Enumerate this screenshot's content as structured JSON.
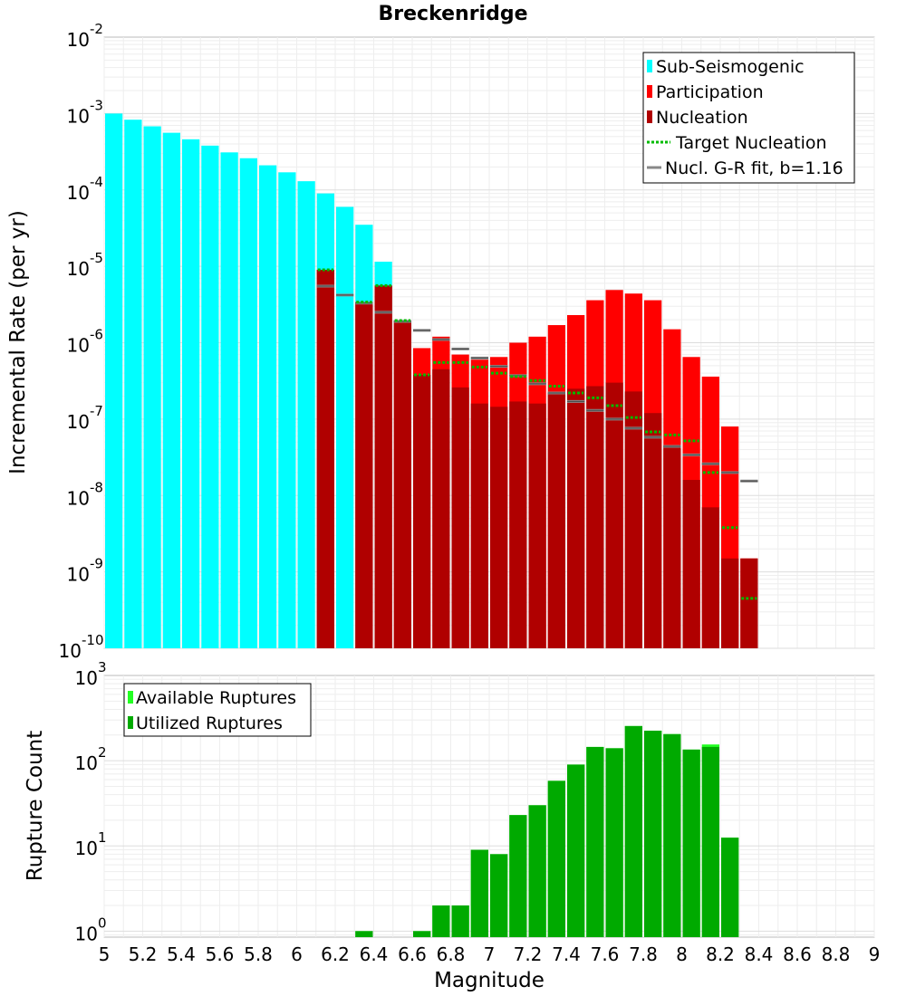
{
  "chart_data": [
    {
      "type": "bar",
      "title": "Breckenridge",
      "xlabel": "",
      "ylabel": "Incremental Rate (per yr)",
      "yscale": "log",
      "ylim": [
        1e-10,
        0.01
      ],
      "xlim": [
        5,
        9
      ],
      "bin_width": 0.1,
      "ytick_bases": [
        "10",
        "10",
        "10",
        "10",
        "10",
        "10",
        "10",
        "10",
        "10"
      ],
      "ytick_exps": [
        "-10",
        "-9",
        "-8",
        "-7",
        "-6",
        "-5",
        "-4",
        "-3",
        "-2"
      ],
      "grid": true,
      "legend_position": "top-right",
      "legend": [
        {
          "label": "Sub-Seismogenic",
          "color": "#00ffff",
          "style": "bar"
        },
        {
          "label": "Participation",
          "color": "#ff0000",
          "style": "bar"
        },
        {
          "label": "Nucleation",
          "color": "#b00000",
          "style": "bar"
        },
        {
          "label": "Target Nucleation",
          "color": "#00bb00",
          "style": "dotted"
        },
        {
          "label": "Nucl. G-R fit, b=1.16",
          "color": "#888888",
          "style": "line"
        }
      ],
      "series": [
        {
          "name": "Sub-Seismogenic",
          "x": [
            5.05,
            5.15,
            5.25,
            5.35,
            5.45,
            5.55,
            5.65,
            5.75,
            5.85,
            5.95,
            6.05,
            6.15,
            6.25,
            6.35,
            6.45
          ],
          "values": [
            0.001,
            0.00083,
            0.00068,
            0.00056,
            0.00046,
            0.00038,
            0.00031,
            0.00026,
            0.00021,
            0.00017,
            0.00013,
            9e-05,
            6e-05,
            3.5e-05,
            1.15e-05
          ]
        },
        {
          "name": "Participation",
          "x": [
            6.15,
            6.35,
            6.45,
            6.55,
            6.65,
            6.75,
            6.85,
            6.95,
            7.05,
            7.15,
            7.25,
            7.35,
            7.45,
            7.55,
            7.65,
            7.75,
            7.85,
            7.95,
            8.05,
            8.15,
            8.25,
            8.35
          ],
          "values": [
            9e-06,
            3.4e-06,
            5.6e-06,
            1.95e-06,
            8.5e-07,
            1.2e-06,
            7e-07,
            6e-07,
            6.5e-07,
            1e-06,
            1.2e-06,
            1.7e-06,
            2.3e-06,
            3.6e-06,
            4.9e-06,
            4.4e-06,
            3.6e-06,
            1.5e-06,
            6.5e-07,
            3.6e-07,
            8e-08,
            1.5e-09
          ]
        },
        {
          "name": "Nucleation",
          "x": [
            6.15,
            6.35,
            6.45,
            6.55,
            6.65,
            6.75,
            6.85,
            6.95,
            7.05,
            7.15,
            7.25,
            7.35,
            7.45,
            7.55,
            7.65,
            7.75,
            7.85,
            7.95,
            8.05,
            8.15,
            8.25,
            8.35
          ],
          "values": [
            9e-06,
            3.4e-06,
            5.6e-06,
            1.95e-06,
            3.8e-07,
            4.5e-07,
            2.6e-07,
            1.6e-07,
            1.45e-07,
            1.7e-07,
            1.6e-07,
            2.2e-07,
            2.5e-07,
            2.7e-07,
            3e-07,
            2.3e-07,
            1.2e-07,
            4.5e-08,
            1.6e-08,
            7e-09,
            1.5e-09,
            1.5e-09
          ]
        },
        {
          "name": "Target Nucleation",
          "x": [
            6.15,
            6.35,
            6.45,
            6.55,
            6.65,
            6.75,
            6.85,
            6.95,
            7.05,
            7.15,
            7.25,
            7.35,
            7.45,
            7.55,
            7.65,
            7.75,
            7.85,
            7.95,
            8.05,
            8.15,
            8.25,
            8.35
          ],
          "values": [
            9e-06,
            3.4e-06,
            5.6e-06,
            1.95e-06,
            3.8e-07,
            5.5e-07,
            5.5e-07,
            4.8e-07,
            4e-07,
            3.6e-07,
            3.2e-07,
            2.7e-07,
            2.2e-07,
            1.9e-07,
            1.5e-07,
            1.05e-07,
            6.8e-08,
            6.2e-08,
            5.2e-08,
            2e-08,
            3.8e-09,
            4.5e-10
          ]
        },
        {
          "name": "Nucl. G-R fit, b=1.16",
          "x": [
            6.15,
            6.25,
            6.35,
            6.45,
            6.55,
            6.65,
            6.75,
            6.85,
            6.95,
            7.05,
            7.15,
            7.25,
            7.35,
            7.45,
            7.55,
            7.65,
            7.75,
            7.85,
            7.95,
            8.05,
            8.15,
            8.25,
            8.35
          ],
          "values": [
            5.5e-06,
            4.2e-06,
            3.3e-06,
            2.5e-06,
            1.9e-06,
            1.45e-06,
            1.1e-06,
            8.3e-07,
            6.3e-07,
            4.9e-07,
            3.7e-07,
            2.9e-07,
            2.2e-07,
            1.7e-07,
            1.3e-07,
            1e-07,
            7.6e-08,
            5.8e-08,
            4.4e-08,
            3.4e-08,
            2.6e-08,
            2e-08,
            1.55e-08
          ]
        }
      ]
    },
    {
      "type": "bar",
      "xlabel": "Magnitude",
      "ylabel": "Rupture Count",
      "yscale": "log",
      "ylim": [
        0.85,
        1000
      ],
      "xlim": [
        5,
        9
      ],
      "xticks": [
        5,
        5.2,
        5.4,
        5.6,
        5.8,
        6,
        6.2,
        6.4,
        6.6,
        6.8,
        7,
        7.2,
        7.4,
        7.6,
        7.8,
        8,
        8.2,
        8.4,
        8.6,
        8.8,
        9
      ],
      "xtick_labels": [
        "5",
        "5.2",
        "5.4",
        "5.6",
        "5.8",
        "6",
        "6.2",
        "6.4",
        "6.6",
        "6.8",
        "7",
        "7.2",
        "7.4",
        "7.6",
        "7.8",
        "8",
        "8.2",
        "8.4",
        "8.6",
        "8.8",
        "9"
      ],
      "ytick_bases": [
        "10",
        "10",
        "10",
        "10"
      ],
      "ytick_exps": [
        "0",
        "1",
        "2",
        "3"
      ],
      "grid": true,
      "legend_position": "top-left",
      "legend": [
        {
          "label": "Available Ruptures",
          "color": "#22ff22",
          "style": "bar"
        },
        {
          "label": "Utilized Ruptures",
          "color": "#00aa00",
          "style": "bar"
        }
      ],
      "series": [
        {
          "name": "Available Ruptures",
          "x": [
            6.35,
            6.65,
            6.75,
            6.85,
            6.95,
            7.05,
            7.15,
            7.25,
            7.35,
            7.45,
            7.55,
            7.65,
            7.75,
            7.85,
            7.95,
            8.05,
            8.15,
            8.25
          ],
          "values": [
            1,
            1,
            2,
            2,
            9,
            8,
            23,
            30,
            58,
            90,
            145,
            140,
            255,
            225,
            205,
            135,
            155,
            12.5
          ]
        },
        {
          "name": "Utilized Ruptures",
          "x": [
            6.35,
            6.65,
            6.75,
            6.85,
            6.95,
            7.05,
            7.15,
            7.25,
            7.35,
            7.45,
            7.55,
            7.65,
            7.75,
            7.85,
            7.95,
            8.05,
            8.15,
            8.25
          ],
          "values": [
            1,
            1,
            2,
            2,
            9,
            8,
            23,
            30,
            58,
            90,
            145,
            140,
            255,
            225,
            205,
            135,
            145,
            12.5
          ]
        }
      ]
    }
  ]
}
